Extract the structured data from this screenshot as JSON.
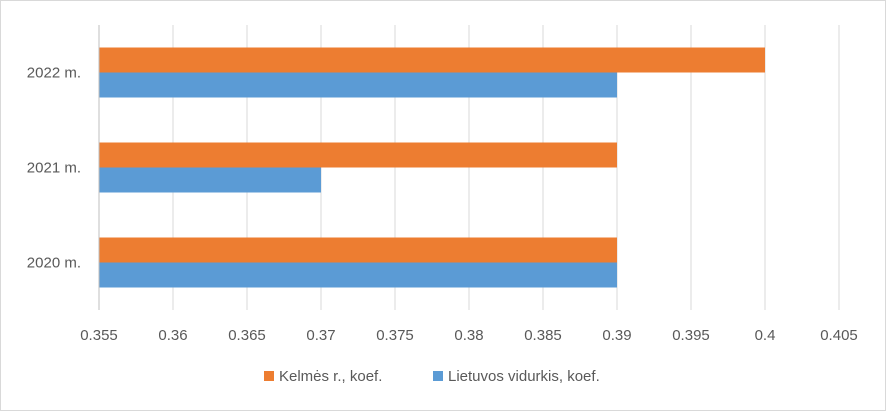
{
  "chart_data": {
    "type": "bar",
    "orientation": "horizontal",
    "categories": [
      "2020 m.",
      "2021 m.",
      "2022 m."
    ],
    "series": [
      {
        "name": "Kelmės r., koef.",
        "values": [
          0.39,
          0.39,
          0.4
        ],
        "color": "#ED7D31"
      },
      {
        "name": "Lietuvos vidurkis, koef.",
        "values": [
          0.39,
          0.37,
          0.39
        ],
        "color": "#5B9BD5"
      }
    ],
    "x_ticks": [
      "0.355",
      "0.36",
      "0.365",
      "0.37",
      "0.375",
      "0.38",
      "0.385",
      "0.39",
      "0.395",
      "0.4",
      "0.405"
    ],
    "xlim": [
      0.355,
      0.405
    ],
    "grid": true,
    "legend_position": "bottom",
    "title": "",
    "xlabel": "",
    "ylabel": ""
  }
}
